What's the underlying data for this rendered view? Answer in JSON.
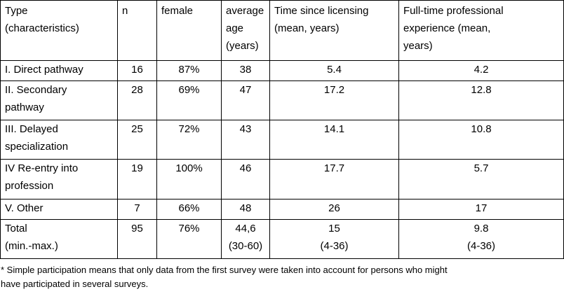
{
  "table": {
    "headers": [
      [
        "Type",
        "(characteristics)"
      ],
      [
        "n"
      ],
      [
        "female"
      ],
      [
        "average",
        "age",
        "(years)"
      ],
      [
        "Time since licensing",
        "(mean, years)"
      ],
      [
        "Full-time professional",
        "experience (mean,",
        "years)"
      ]
    ],
    "rows": [
      [
        [
          "I. Direct pathway"
        ],
        [
          "16"
        ],
        [
          "87%"
        ],
        [
          "38"
        ],
        [
          "5.4"
        ],
        [
          "4.2"
        ]
      ],
      [
        [
          "II. Secondary",
          "pathway"
        ],
        [
          "28"
        ],
        [
          "69%"
        ],
        [
          "47"
        ],
        [
          "17.2"
        ],
        [
          "12.8"
        ]
      ],
      [
        [
          "III. Delayed",
          "specialization"
        ],
        [
          "25"
        ],
        [
          "72%"
        ],
        [
          "43"
        ],
        [
          "14.1"
        ],
        [
          "10.8"
        ]
      ],
      [
        [
          "IV Re-entry into",
          "profession"
        ],
        [
          "19"
        ],
        [
          "100%"
        ],
        [
          "46"
        ],
        [
          "17.7"
        ],
        [
          "5.7"
        ]
      ],
      [
        [
          "V. Other"
        ],
        [
          "7"
        ],
        [
          "66%"
        ],
        [
          "48"
        ],
        [
          "26"
        ],
        [
          "17"
        ]
      ],
      [
        [
          "Total",
          "(min.-max.)"
        ],
        [
          "95"
        ],
        [
          "76%"
        ],
        [
          "44,6",
          "(30-60)"
        ],
        [
          "15",
          "(4-36)"
        ],
        [
          "9.8",
          "(4-36)"
        ]
      ]
    ]
  },
  "footnote": [
    "* Simple participation means that only data from the first survey were taken into account for persons who might",
    "have participated in several surveys."
  ]
}
